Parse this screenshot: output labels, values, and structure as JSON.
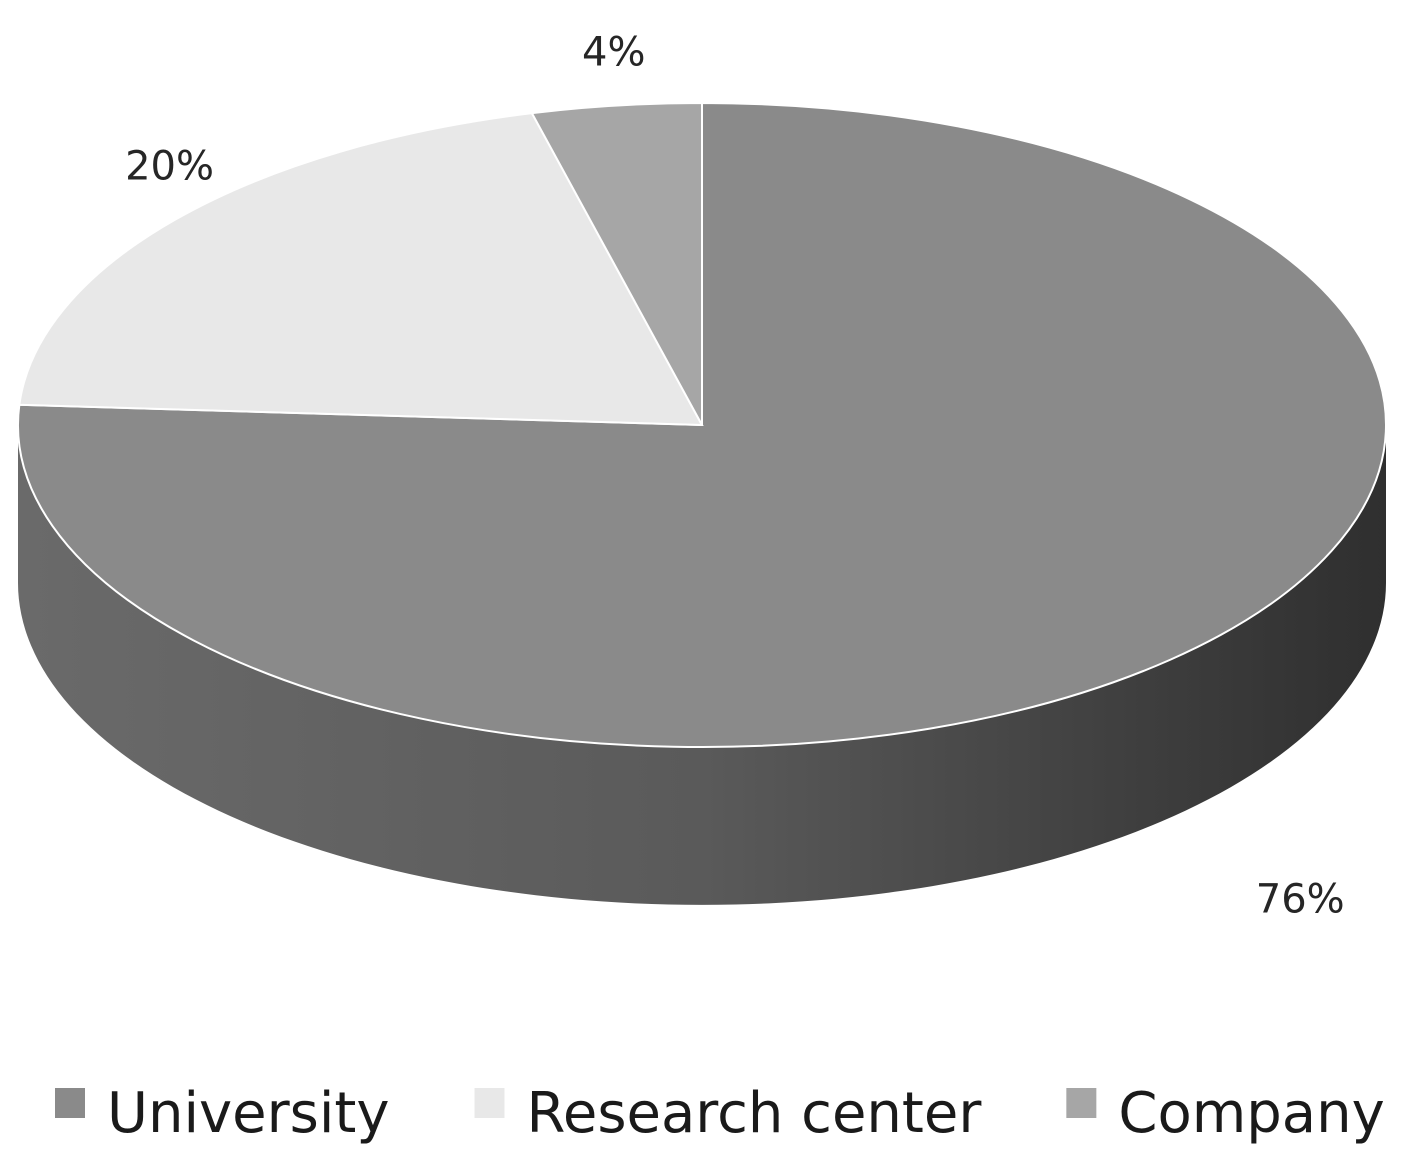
{
  "chart_data": {
    "type": "pie",
    "style": "3d",
    "categories": [
      "University",
      "Research center",
      "Company"
    ],
    "values": [
      76,
      20,
      4
    ],
    "data_labels": [
      "76%",
      "20%",
      "4%"
    ],
    "colors": [
      "#8a8a8a",
      "#e8e8e8",
      "#a6a6a6"
    ],
    "side_colors": [
      "#555555",
      "#cfcfcf",
      "#8c8c8c"
    ],
    "legend": {
      "position": "bottom",
      "items": [
        "University",
        "Research center",
        "Company"
      ]
    },
    "start_angle": "12 o'clock",
    "direction": "clockwise"
  }
}
